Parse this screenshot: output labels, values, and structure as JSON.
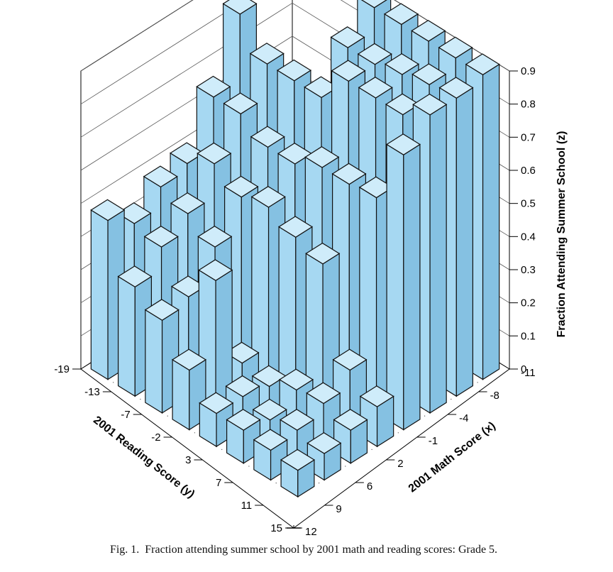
{
  "caption": {
    "label": "Fig. 1.",
    "text": "Fraction attending summer school by 2001 math and reading scores: Grade 5."
  },
  "colors": {
    "bar_front": "#a6d8f2",
    "bar_side": "#85c1e2",
    "bar_top": "#cfecfa",
    "edge": "#111111"
  },
  "chart_data": {
    "type": "bar3d",
    "title": "",
    "xlabel": "2001 Math Score (x)",
    "ylabel": "2001 Reading Score (y)",
    "zlabel": "Fraction Attending Summer School (z)",
    "x_ticks": [
      "-11",
      "-8",
      "-4",
      "-1",
      "2",
      "6",
      "9",
      "12"
    ],
    "y_ticks": [
      "-19",
      "-13",
      "-7",
      "-2",
      "3",
      "7",
      "11",
      "15"
    ],
    "z_ticks": [
      "0",
      "0.1",
      "0.2",
      "0.3",
      "0.4",
      "0.5",
      "0.6",
      "0.7",
      "0.8",
      "0.9"
    ],
    "zlim": [
      0,
      0.9
    ],
    "grid": true,
    "rows_by_reading_score": [
      {
        "y": -19,
        "values": [
          null,
          null,
          null,
          0.92,
          0.92,
          0.92,
          0.92,
          0.92
        ]
      },
      {
        "y": -13,
        "values": [
          null,
          null,
          null,
          0.85,
          0.85,
          0.87,
          0.89,
          0.9
        ]
      },
      {
        "y": -7,
        "values": [
          0.85,
          0.75,
          0.75,
          0.75,
          0.85,
          0.85,
          0.85,
          0.9
        ]
      },
      {
        "y": -2,
        "values": [
          0.65,
          0.65,
          0.6,
          0.6,
          0.64,
          0.64,
          0.65,
          0.83
        ]
      },
      {
        "y": 3,
        "values": [
          0.5,
          0.55,
          0.5,
          0.52,
          0.48,
          0.45,
          0.18,
          0.12
        ]
      },
      {
        "y": 7,
        "values": [
          0.48,
          0.45,
          0.4,
          0.1,
          0.08,
          0.12,
          0.13,
          0.1
        ]
      },
      {
        "y": 11,
        "values": [
          0.42,
          0.4,
          0.3,
          0.4,
          0.1,
          0.08,
          0.1,
          0.08
        ]
      },
      {
        "y": 15,
        "values": [
          0.48,
          0.33,
          0.28,
          0.18,
          0.1,
          0.1,
          0.09,
          0.08
        ]
      }
    ]
  }
}
